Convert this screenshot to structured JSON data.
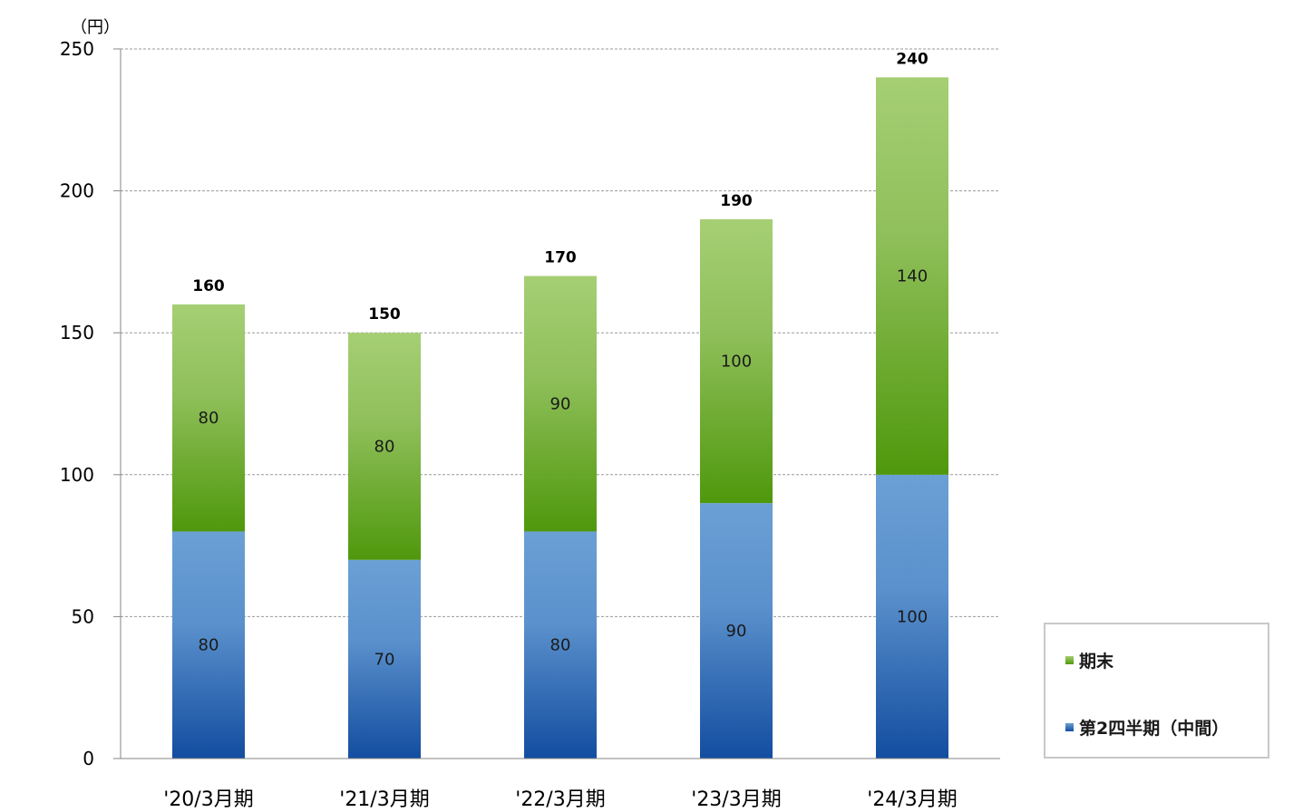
{
  "chart_data": {
    "type": "bar",
    "stacked": true,
    "unit_label": "（円）",
    "categories": [
      "'20/3月期",
      "'21/3月期",
      "'22/3月期",
      "'23/3月期",
      "'24/3月期"
    ],
    "series": [
      {
        "name": "第2四半期（中間）",
        "values": [
          80,
          70,
          80,
          90,
          100
        ],
        "color": "#4f81bd"
      },
      {
        "name": "期末",
        "values": [
          80,
          80,
          90,
          100,
          140
        ],
        "color": "#5a9e1c"
      }
    ],
    "totals": [
      160,
      150,
      170,
      190,
      240
    ],
    "ylim": [
      0,
      250
    ],
    "yticks": [
      0,
      50,
      100,
      150,
      200,
      250
    ],
    "grid": true,
    "legend_position": "bottom-right"
  }
}
